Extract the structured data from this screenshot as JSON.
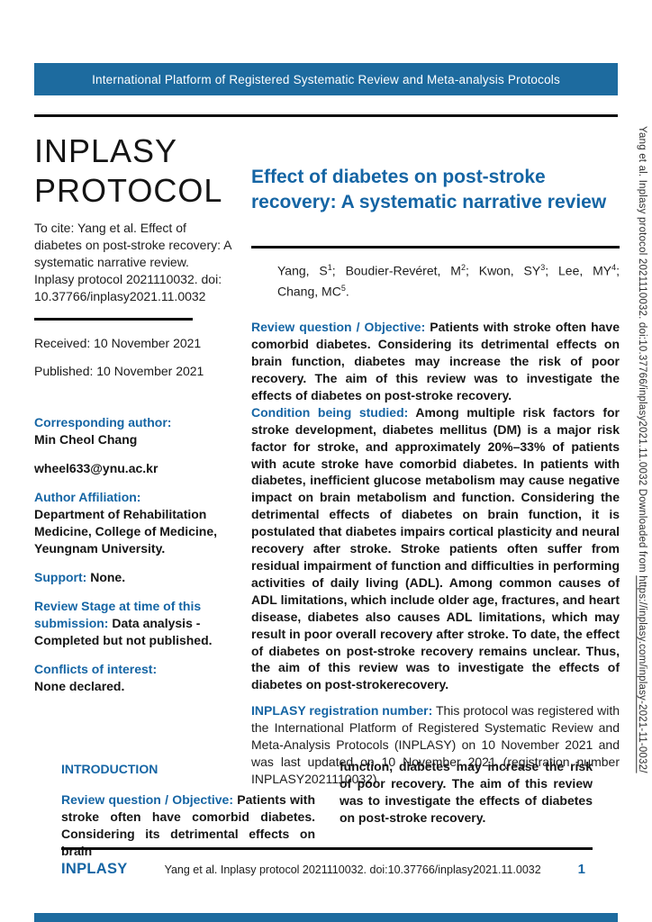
{
  "colors": {
    "banner_bg": "#1d6b9f",
    "accent_blue": "#1565a4",
    "rule": "#0d0d0d"
  },
  "banner": {
    "text": "International Platform of Registered Systematic Review and Meta-analysis Protocols"
  },
  "sidebar": {
    "masthead_line1": "INPLASY",
    "masthead_line2": "PROTOCOL",
    "cite": "To cite: Yang et al. Effect of diabetes on post-stroke recovery: A systematic narrative review. Inplasy protocol 2021110032. doi: 10.37766/inplasy2021.11.0032",
    "received": "Received: 10 November 2021",
    "published": "Published: 10 November 2021",
    "corresponding_label": "Corresponding author:",
    "corresponding_name": "Min Cheol Chang",
    "email": "wheel633@ynu.ac.kr",
    "affiliation_label": "Author Affiliation:",
    "affiliation_value": "Department of Rehabilitation Medicine, College of Medicine, Yeungnam University.",
    "support_label": "Support:",
    "support_value": " None.",
    "review_stage_label": "Review Stage at time of this submission:",
    "review_stage_value": " Data analysis - Completed but not published.",
    "conflicts_label": "Conflicts of interest:",
    "conflicts_value": "None declared."
  },
  "article": {
    "title": "Effect of diabetes on post-stroke recovery: A systematic narrative review",
    "authors": [
      {
        "name": "Yang, S",
        "sup": "1",
        "sep": "; "
      },
      {
        "name": "Boudier-Revéret, M",
        "sup": "2",
        "sep": "; "
      },
      {
        "name": "Kwon, SY",
        "sup": "3",
        "sep": "; "
      },
      {
        "name": "Lee, MY",
        "sup": "4",
        "sep": "; "
      },
      {
        "name": "Chang, MC",
        "sup": "5",
        "sep": "."
      }
    ],
    "sections": [
      {
        "label": "Review question / Objective:",
        "text": " Patients with stroke often have comorbid diabetes. Considering its detrimental effects on brain function, diabetes may increase the risk of poor recovery. The aim of this review was to investigate the effects of diabetes on post-stroke recovery."
      },
      {
        "label": "Condition being studied:",
        "text": " Among multiple risk factors for stroke development, diabetes mellitus (DM) is a major risk factor for stroke, and approximately 20%–33% of patients with acute stroke have comorbid diabetes. In patients with diabetes, inefficient glucose metabolism may cause negative impact on brain metabolism and function. Considering the detrimental effects of diabetes on brain function, it is postulated that diabetes impairs cortical plasticity and neural recovery after stroke. Stroke patients often suffer from residual impairment of function and difficulties in performing activities of daily living (ADL). Among common causes of ADL limitations, which include older age, fractures, and heart disease, diabetes also causes ADL limitations, which may result in poor overall recovery after stroke. To date, the effect of diabetes on post-stroke recovery remains unclear. Thus, the aim of this review was to investigate the effects of diabetes on post-strokerecovery."
      }
    ],
    "registration": {
      "label": "INPLASY registration number:",
      "text": " This protocol was registered with the International Platform of Registered Systematic Review and Meta-Analysis Protocols (INPLASY) on 10 November 2021 and was last updated on 10 November 2021 (registration number INPLASY2021110032)."
    }
  },
  "introduction": {
    "heading": "INTRODUCTION",
    "col1_label": "Review question / Objective:",
    "col1_text": " Patients with stroke often have comorbid diabetes. Considering its detrimental effects on brain",
    "col2_text": "function, diabetes may increase the risk of poor recovery. The aim of this review was to investigate the effects of diabetes on post-stroke recovery."
  },
  "footer": {
    "brand": "INPLASY",
    "citation": "Yang et al. Inplasy protocol 2021110032. doi:10.37766/inplasy2021.11.0032",
    "page": "1"
  },
  "side_note": {
    "text": "Yang et al. Inplasy protocol 2021110032. doi:10.37766/inplasy2021.11.0032 Downloaded from ",
    "link": "https://inplasy.com/inplasy-2021-11-0032/"
  }
}
